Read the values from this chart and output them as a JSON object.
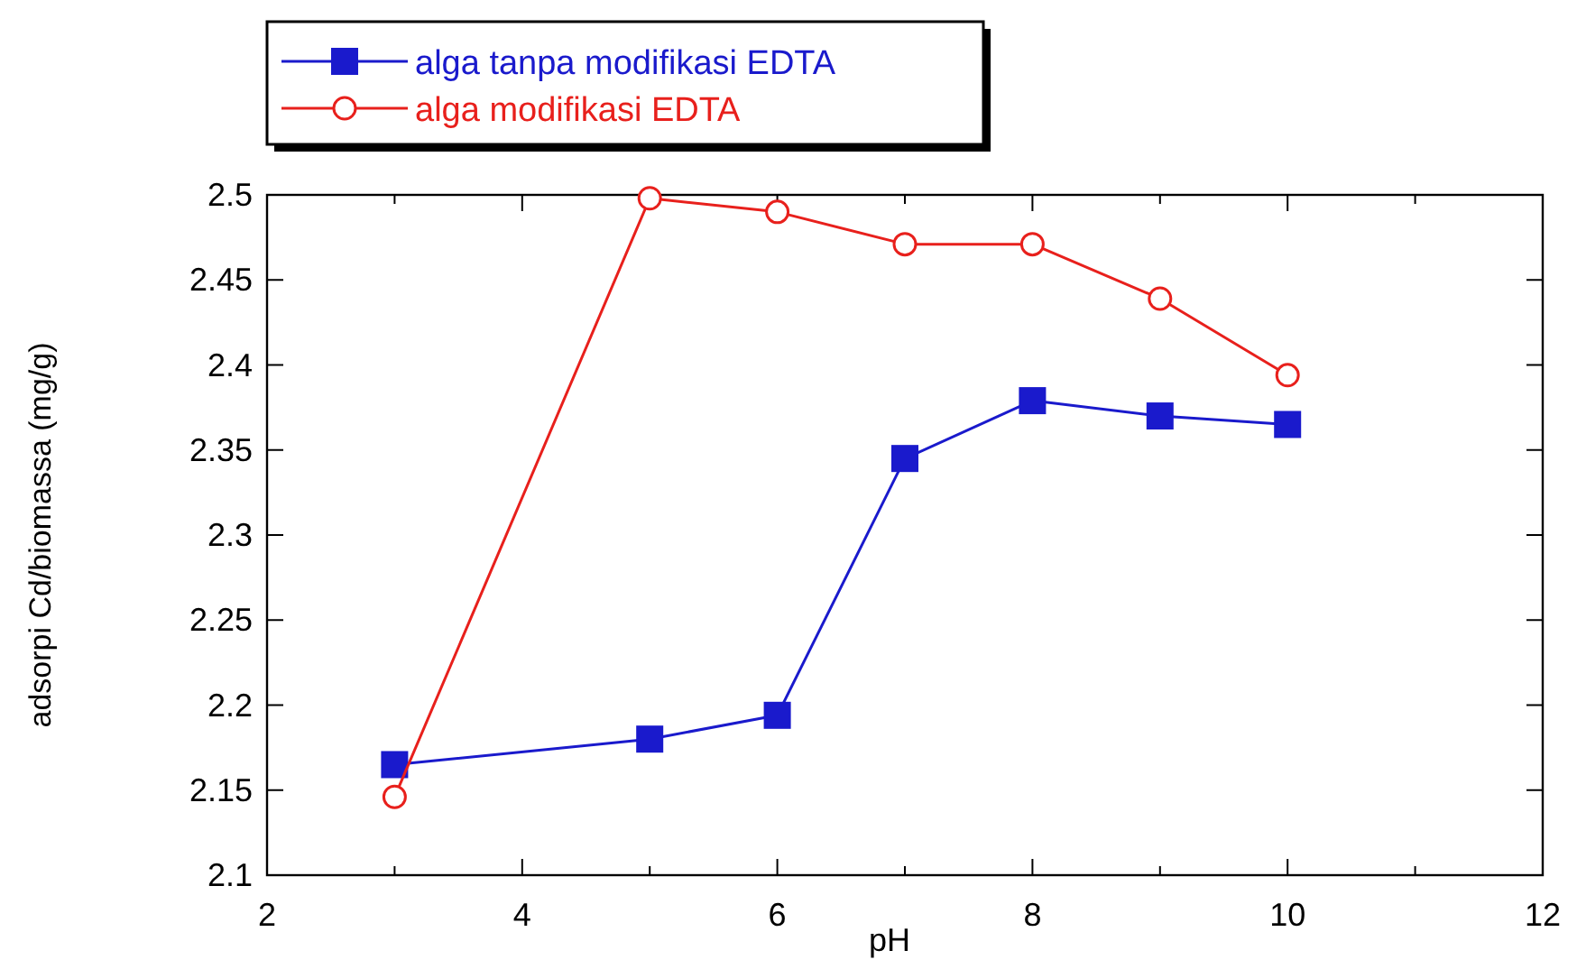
{
  "chart_data": {
    "type": "line",
    "xlabel": "pH",
    "ylabel": "adsorpi Cd/biomassa (mg/g)",
    "x": [
      3,
      5,
      6,
      7,
      8,
      9,
      10
    ],
    "series": [
      {
        "name": "alga tanpa modifikasi EDTA",
        "color": "#1a1acc",
        "marker": "square",
        "values": [
          2.165,
          2.18,
          2.194,
          2.345,
          2.379,
          2.37,
          2.365
        ]
      },
      {
        "name": "alga modifikasi EDTA",
        "color": "#e8201c",
        "marker": "circle",
        "values": [
          2.146,
          2.498,
          2.49,
          2.471,
          2.471,
          2.439,
          2.394
        ]
      }
    ],
    "xlim": [
      2,
      12
    ],
    "xticks": [
      2,
      {
        "value": 3,
        "label": null
      },
      4,
      {
        "value": 5,
        "label": null
      },
      6,
      {
        "value": 7,
        "label": null
      },
      8,
      {
        "value": 9,
        "label": null
      },
      10,
      {
        "value": 11,
        "label": null
      },
      12
    ],
    "ylim": [
      2.1,
      2.5
    ],
    "yticks": [
      {
        "value": 2.1,
        "label": "2.1"
      },
      2.15,
      {
        "value": 2.2,
        "label": "2.2"
      },
      2.25,
      {
        "value": 2.3,
        "label": "2.3"
      },
      2.35,
      {
        "value": 2.4,
        "label": "2.4"
      },
      2.45,
      {
        "value": 2.5,
        "label": "2.5"
      }
    ],
    "legend": "top left",
    "line_style": "solid"
  }
}
